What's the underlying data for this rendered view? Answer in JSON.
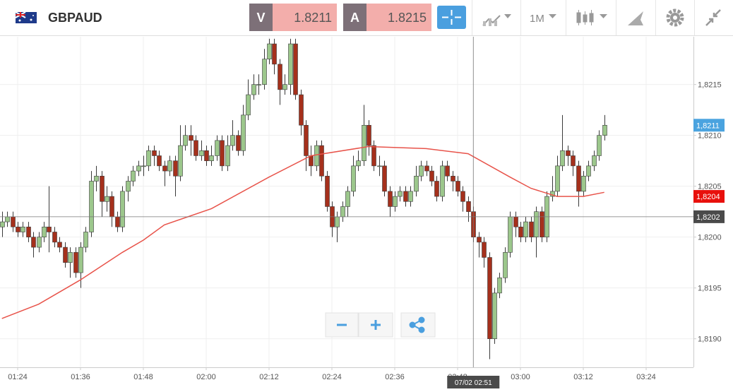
{
  "toolbar": {
    "symbol": "GBPAUD",
    "bid_label": "V",
    "bid": 1.8211,
    "ask_label": "A",
    "ask": 1.8215,
    "timeframe": "1M"
  },
  "chart_data": {
    "type": "candlestick",
    "up_color": "#9cc78c",
    "down_color": "#a5301c",
    "xlim": [
      80.63,
      213.03
    ],
    "ylim": [
      1.81872,
      1.82197
    ],
    "xticks": [
      {
        "value": 84,
        "label": "01:24"
      },
      {
        "value": 96,
        "label": "01:36"
      },
      {
        "value": 108,
        "label": "01:48"
      },
      {
        "value": 120,
        "label": "02:00"
      },
      {
        "value": 132,
        "label": "02:12"
      },
      {
        "value": 144,
        "label": "02:24"
      },
      {
        "value": 156,
        "label": "02:36"
      },
      {
        "value": 168,
        "label": "02:48"
      },
      {
        "value": 180,
        "label": "03:00"
      },
      {
        "value": 192,
        "label": "03:12"
      },
      {
        "value": 204,
        "label": "03:24"
      }
    ],
    "yticks": [
      {
        "value": 1.819,
        "label": "1,8190"
      },
      {
        "value": 1.8195,
        "label": "1,8195"
      },
      {
        "value": 1.82,
        "label": "1,8200"
      },
      {
        "value": 1.8205,
        "label": "1,8205"
      },
      {
        "value": 1.821,
        "label": "1,8210"
      },
      {
        "value": 1.8215,
        "label": "1,8215"
      }
    ],
    "grid": true,
    "x": [
      81,
      82,
      83,
      84,
      85,
      86,
      87,
      88,
      89,
      90,
      91,
      92,
      93,
      94,
      95,
      96,
      97,
      98,
      99,
      100,
      101,
      102,
      103,
      104,
      105,
      106,
      107,
      108,
      109,
      110,
      111,
      112,
      113,
      114,
      115,
      116,
      117,
      118,
      119,
      120,
      121,
      122,
      123,
      124,
      125,
      126,
      127,
      128,
      129,
      130,
      131,
      132,
      133,
      134,
      135,
      136,
      137,
      138,
      139,
      140,
      141,
      142,
      143,
      144,
      145,
      146,
      147,
      148,
      149,
      150,
      151,
      152,
      153,
      154,
      155,
      156,
      157,
      158,
      159,
      160,
      161,
      162,
      163,
      164,
      165,
      166,
      167,
      168,
      169,
      170,
      171,
      172,
      173,
      174,
      175,
      176,
      177,
      178,
      179,
      180,
      181,
      182,
      183,
      184,
      185,
      186,
      187,
      188,
      189,
      190,
      191,
      192,
      193,
      194,
      195,
      196
    ],
    "open": [
      1.8201,
      1.82015,
      1.8202,
      1.8201,
      1.82005,
      1.8201,
      1.82,
      1.8199,
      1.82,
      1.8201,
      1.82005,
      1.81995,
      1.8199,
      1.81975,
      1.81985,
      1.81965,
      1.8199,
      1.82005,
      1.82055,
      1.8206,
      1.82035,
      1.8204,
      1.8202,
      1.8201,
      1.82045,
      1.82055,
      1.82065,
      1.8207,
      1.8207,
      1.82085,
      1.8208,
      1.8207,
      1.82065,
      1.82075,
      1.8206,
      1.8209,
      1.821,
      1.82095,
      1.8208,
      1.82085,
      1.82075,
      1.8208,
      1.82095,
      1.8207,
      1.8209,
      1.821,
      1.82085,
      1.8212,
      1.8214,
      1.8215,
      1.8215,
      1.82175,
      1.8219,
      1.8217,
      1.82145,
      1.8215,
      1.8219,
      1.8214,
      1.8211,
      1.8208,
      1.8207,
      1.8209,
      1.8206,
      1.8203,
      1.8201,
      1.8202,
      1.8203,
      1.82045,
      1.8207,
      1.82075,
      1.8211,
      1.8209,
      1.8207,
      1.8207,
      1.82045,
      1.8203,
      1.8204,
      1.82045,
      1.82035,
      1.82045,
      1.8206,
      1.8207,
      1.82065,
      1.82055,
      1.8204,
      1.8207,
      1.8206,
      1.82055,
      1.82045,
      1.82035,
      1.82025,
      1.82,
      1.81995,
      1.8198,
      1.819,
      1.81945,
      1.8196,
      1.81985,
      1.8202,
      1.8201,
      1.82,
      1.82015,
      1.82,
      1.82025,
      1.82,
      1.8204,
      1.82045,
      1.8207,
      1.82085,
      1.8208,
      1.8207,
      1.82045,
      1.8206,
      1.8207,
      1.8208,
      1.821
    ],
    "high": [
      1.82025,
      1.82025,
      1.82025,
      1.82015,
      1.82015,
      1.82015,
      1.82005,
      1.82005,
      1.82015,
      1.8205,
      1.8201,
      1.82,
      1.81995,
      1.8199,
      1.8199,
      1.81995,
      1.8201,
      1.82065,
      1.8207,
      1.82065,
      1.8205,
      1.82045,
      1.82025,
      1.8205,
      1.8206,
      1.8207,
      1.82075,
      1.8208,
      1.8209,
      1.8209,
      1.82085,
      1.82075,
      1.8208,
      1.8208,
      1.8211,
      1.8211,
      1.8211,
      1.821,
      1.82095,
      1.8209,
      1.8209,
      1.821,
      1.821,
      1.821,
      1.82115,
      1.82105,
      1.8213,
      1.82155,
      1.8216,
      1.8216,
      1.82185,
      1.82195,
      1.82195,
      1.82175,
      1.8216,
      1.82195,
      1.82195,
      1.82145,
      1.82115,
      1.8209,
      1.82095,
      1.82095,
      1.82065,
      1.82035,
      1.82025,
      1.82035,
      1.8205,
      1.8208,
      1.82085,
      1.8213,
      1.82115,
      1.82095,
      1.8208,
      1.82075,
      1.8205,
      1.82045,
      1.8205,
      1.8205,
      1.8205,
      1.8207,
      1.82075,
      1.82075,
      1.8207,
      1.8206,
      1.82075,
      1.82075,
      1.82065,
      1.8206,
      1.8205,
      1.8204,
      1.8203,
      1.82005,
      1.82,
      1.81985,
      1.8195,
      1.81965,
      1.8199,
      1.82025,
      1.82025,
      1.82015,
      1.8202,
      1.8202,
      1.8203,
      1.8203,
      1.82045,
      1.8206,
      1.8208,
      1.8212,
      1.8209,
      1.82085,
      1.82075,
      1.82065,
      1.82075,
      1.82085,
      1.82105,
      1.8212
    ],
    "low": [
      1.82,
      1.8201,
      1.82005,
      1.82,
      1.82,
      1.81995,
      1.8198,
      1.81985,
      1.81995,
      1.81985,
      1.8199,
      1.81985,
      1.8197,
      1.8196,
      1.8196,
      1.8195,
      1.81985,
      1.82,
      1.82045,
      1.8202,
      1.82025,
      1.8201,
      1.82005,
      1.82005,
      1.82035,
      1.8205,
      1.8206,
      1.8206,
      1.82065,
      1.8207,
      1.82065,
      1.8205,
      1.8206,
      1.8204,
      1.82055,
      1.82085,
      1.8208,
      1.82075,
      1.82075,
      1.8207,
      1.8207,
      1.82075,
      1.82065,
      1.82065,
      1.82085,
      1.8208,
      1.8208,
      1.82115,
      1.82135,
      1.8214,
      1.82145,
      1.8217,
      1.8216,
      1.8213,
      1.8214,
      1.8214,
      1.82135,
      1.821,
      1.82065,
      1.8206,
      1.82065,
      1.82055,
      1.82025,
      1.82,
      1.81995,
      1.82015,
      1.8202,
      1.8204,
      1.82065,
      1.8207,
      1.8208,
      1.82065,
      1.8206,
      1.8204,
      1.8202,
      1.82025,
      1.82035,
      1.8203,
      1.8203,
      1.8204,
      1.82055,
      1.8206,
      1.8205,
      1.82035,
      1.82035,
      1.82055,
      1.82045,
      1.8204,
      1.82025,
      1.82015,
      1.81995,
      1.8198,
      1.8197,
      1.8188,
      1.81895,
      1.8194,
      1.81955,
      1.8198,
      1.82,
      1.81995,
      1.81995,
      1.81995,
      1.8198,
      1.81995,
      1.81995,
      1.82035,
      1.8204,
      1.82065,
      1.8207,
      1.8206,
      1.8203,
      1.8204,
      1.82055,
      1.82065,
      1.82075,
      1.82095
    ],
    "close": [
      1.82015,
      1.8202,
      1.8201,
      1.82005,
      1.8201,
      1.82,
      1.8199,
      1.82,
      1.8201,
      1.82005,
      1.81995,
      1.8199,
      1.81975,
      1.81985,
      1.81965,
      1.8199,
      1.82005,
      1.82055,
      1.8206,
      1.82035,
      1.8204,
      1.8202,
      1.8201,
      1.82045,
      1.82055,
      1.82065,
      1.8207,
      1.8207,
      1.82085,
      1.8208,
      1.8207,
      1.82065,
      1.82075,
      1.8206,
      1.8209,
      1.821,
      1.82095,
      1.8208,
      1.82085,
      1.82075,
      1.8208,
      1.82095,
      1.8207,
      1.8209,
      1.821,
      1.82085,
      1.8212,
      1.8214,
      1.8215,
      1.8215,
      1.82175,
      1.8219,
      1.8217,
      1.82145,
      1.8215,
      1.8219,
      1.8214,
      1.8211,
      1.8208,
      1.8207,
      1.8209,
      1.8206,
      1.8203,
      1.8201,
      1.8202,
      1.8203,
      1.82045,
      1.8207,
      1.82075,
      1.8211,
      1.8209,
      1.8207,
      1.8207,
      1.82045,
      1.8203,
      1.8204,
      1.82045,
      1.82035,
      1.82045,
      1.8206,
      1.8207,
      1.82065,
      1.82055,
      1.8204,
      1.8207,
      1.8206,
      1.82055,
      1.82045,
      1.82035,
      1.82025,
      1.82,
      1.81995,
      1.8198,
      1.819,
      1.81945,
      1.8196,
      1.81985,
      1.8202,
      1.8201,
      1.82,
      1.82015,
      1.82,
      1.82025,
      1.82,
      1.8204,
      1.82045,
      1.8207,
      1.82085,
      1.8208,
      1.8207,
      1.82045,
      1.8206,
      1.8207,
      1.8208,
      1.821,
      1.8211
    ],
    "ma": {
      "color": "#e8534a",
      "x": [
        81,
        88,
        96,
        104,
        108,
        112,
        121,
        132,
        140,
        151,
        162,
        170,
        178,
        182,
        187,
        192,
        196
      ],
      "values": [
        1.8192,
        1.81934,
        1.81958,
        1.81985,
        1.81997,
        1.82012,
        1.82028,
        1.82059,
        1.8208,
        1.82089,
        1.82087,
        1.82082,
        1.82059,
        1.82048,
        1.8204,
        1.8204,
        1.82044
      ]
    },
    "price_tags": [
      {
        "value": 1.8211,
        "label": "1,8211",
        "color": "#4aa3df"
      },
      {
        "value": 1.8204,
        "label": "1,8204",
        "color": "#e8100c"
      }
    ],
    "crosshair": {
      "x": 171,
      "y": {
        "value": 1.8202,
        "label": "1,8202"
      },
      "label": "07/02 02:51"
    }
  }
}
